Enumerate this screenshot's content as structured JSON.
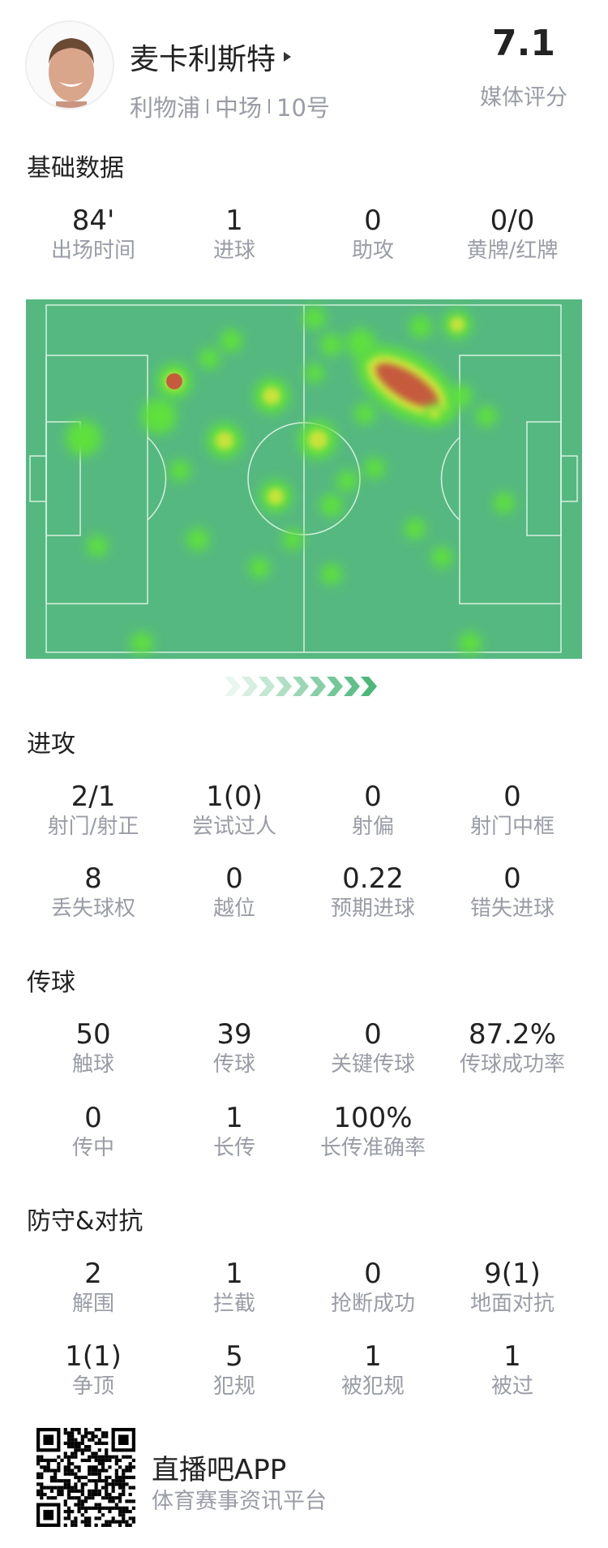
{
  "player": {
    "name": "麦卡利斯特",
    "team": "利物浦",
    "position": "中场",
    "number": "10号",
    "rating": "7.1",
    "rating_label": "媒体评分"
  },
  "sections": [
    {
      "title": "基础数据",
      "rows": [
        [
          {
            "value": "84'",
            "label": "出场时间"
          },
          {
            "value": "1",
            "label": "进球"
          },
          {
            "value": "0",
            "label": "助攻"
          },
          {
            "value": "0/0",
            "label": "黄牌/红牌"
          }
        ]
      ]
    },
    {
      "title": "进攻",
      "rows": [
        [
          {
            "value": "2/1",
            "label": "射门/射正"
          },
          {
            "value": "1(0)",
            "label": "尝试过人"
          },
          {
            "value": "0",
            "label": "射偏"
          },
          {
            "value": "0",
            "label": "射门中框"
          }
        ],
        [
          {
            "value": "8",
            "label": "丢失球权"
          },
          {
            "value": "0",
            "label": "越位"
          },
          {
            "value": "0.22",
            "label": "预期进球"
          },
          {
            "value": "0",
            "label": "错失进球"
          }
        ]
      ]
    },
    {
      "title": "传球",
      "rows": [
        [
          {
            "value": "50",
            "label": "触球"
          },
          {
            "value": "39",
            "label": "传球"
          },
          {
            "value": "0",
            "label": "关键传球"
          },
          {
            "value": "87.2%",
            "label": "传球成功率"
          }
        ],
        [
          {
            "value": "0",
            "label": "传中"
          },
          {
            "value": "1",
            "label": "长传"
          },
          {
            "value": "100%",
            "label": "长传准确率"
          }
        ]
      ]
    },
    {
      "title": "防守&对抗",
      "rows": [
        [
          {
            "value": "2",
            "label": "解围"
          },
          {
            "value": "1",
            "label": "拦截"
          },
          {
            "value": "0",
            "label": "抢断成功"
          },
          {
            "value": "9(1)",
            "label": "地面对抗"
          }
        ],
        [
          {
            "value": "1(1)",
            "label": "争顶"
          },
          {
            "value": "5",
            "label": "犯规"
          },
          {
            "value": "1",
            "label": "被犯规"
          },
          {
            "value": "1",
            "label": "被过"
          }
        ]
      ]
    }
  ],
  "footer": {
    "app_name": "直播吧APP",
    "tagline": "体育赛事资讯平台"
  },
  "colors": {
    "pitch": "#55b880",
    "line": "#d8efe0",
    "heat_low": "#5ee03c",
    "heat_mid": "#c9e23a",
    "heat_high": "#c65a3e",
    "arrow": "#4cb87a"
  }
}
